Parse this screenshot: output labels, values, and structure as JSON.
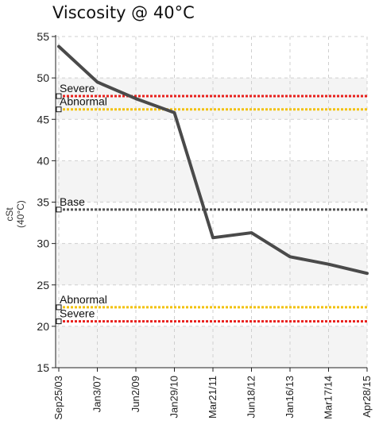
{
  "chart_data": {
    "type": "line",
    "title": "Viscosity @ 40°C",
    "ylabel": "cSt (40°C)",
    "xlabel": "",
    "ylim": [
      15,
      55
    ],
    "yticks": [
      15,
      20,
      25,
      30,
      35,
      40,
      45,
      50,
      55
    ],
    "categories": [
      "Sep25/03",
      "Jan3/07",
      "Jun2/09",
      "Jan29/10",
      "Mar21/11",
      "Jun18/12",
      "Jan16/13",
      "Mar17/14",
      "Apr28/15"
    ],
    "series": [
      {
        "values": [
          53.8,
          49.5,
          47.5,
          45.8,
          30.7,
          31.3,
          28.4,
          27.5,
          26.4
        ],
        "color": "#4a4a4a"
      }
    ],
    "reference_lines": [
      {
        "label": "Severe",
        "value": 47.8,
        "color": "#e8201c"
      },
      {
        "label": "Abnormal",
        "value": 46.2,
        "color": "#f2c10a"
      },
      {
        "label": "Base",
        "value": 34.1,
        "color": "#555555"
      },
      {
        "label": "Abnormal",
        "value": 22.3,
        "color": "#f2c10a"
      },
      {
        "label": "Severe",
        "value": 20.6,
        "color": "#e8201c"
      }
    ],
    "grid": true
  }
}
